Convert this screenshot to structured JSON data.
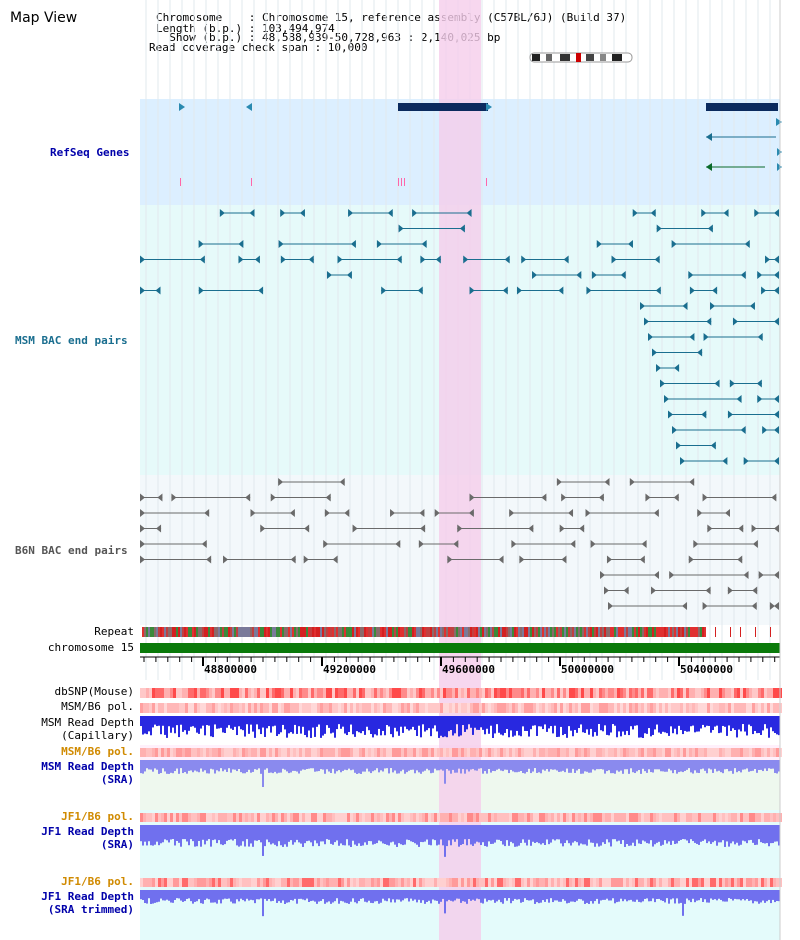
{
  "header": {
    "title": "Map View",
    "chromosome_line": "Chromosome    : Chromosome 15, reference assembly (C57BL/6J) (Build 37)",
    "length_line": "Length (b.p.) : 103,494,974",
    "show_line": "  Show (b.p.) : 48,588,939-50,728,963 : 2,140,025 bp",
    "coverage_line": "Read coverage check span : 10,000"
  },
  "tracks": {
    "refseq": "RefSeq Genes",
    "msm_bac": "MSM BAC end pairs",
    "b6n_bac": "B6N BAC end pairs",
    "repeat": "Repeat",
    "chromosome": "chromosome 15",
    "dbsnp": "dbSNP(Mouse)",
    "msm_b6_pol_1": "MSM/B6 pol.",
    "msm_depth_cap_1": "MSM Read Depth",
    "msm_depth_cap_2": "(Capillary)",
    "msm_b6_pol_2": "MSM/B6 pol.",
    "msm_depth_sra_1": "MSM Read Depth",
    "msm_depth_sra_2": "(SRA)",
    "jf1_b6_pol_1": "JF1/B6 pol.",
    "jf1_depth_sra_1": "JF1 Read Depth",
    "jf1_depth_sra_2": "(SRA)",
    "jf1_b6_pol_2": "JF1/B6 pol.",
    "jf1_depth_trim_1": "JF1 Read Depth",
    "jf1_depth_trim_2": "(SRA trimmed)"
  },
  "axis": {
    "ticks": [
      "48800000",
      "49200000",
      "49600000",
      "50000000",
      "50400000"
    ]
  },
  "colors": {
    "refseq_bg": "#dcefff",
    "msm_bg": "#e6fafa",
    "b6n_bg": "#f3f8fb",
    "highlight": "#f5cdeb",
    "msm_feature": "#1a6e8f",
    "b6n_feature": "#6a6a6a",
    "gene_dark": "#0a2a5e",
    "chromosome_bar": "#0a7a0a",
    "label_blue": "#0000aa",
    "label_orange": "#d08a00",
    "label_black": "#000000"
  }
}
